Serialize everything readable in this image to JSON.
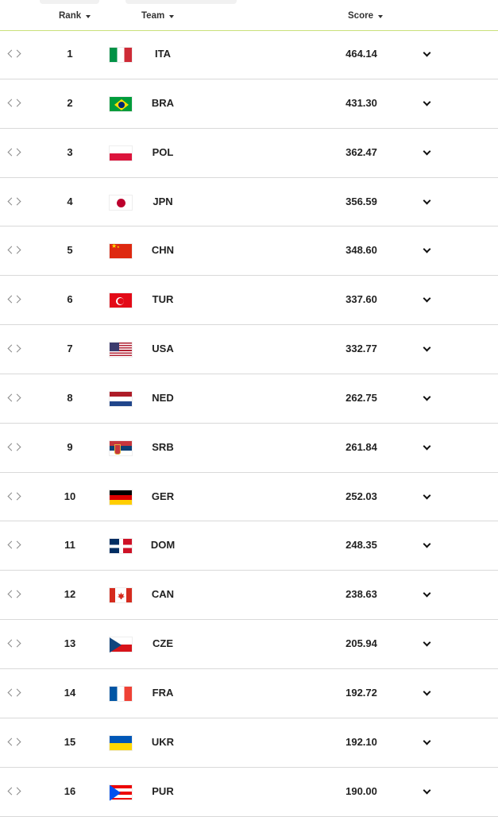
{
  "header": {
    "rank_label": "Rank",
    "team_label": "Team",
    "score_label": "Score"
  },
  "rows": [
    {
      "rank": "1",
      "code": "ITA",
      "score": "464.14",
      "flag": "f-ita"
    },
    {
      "rank": "2",
      "code": "BRA",
      "score": "431.30",
      "flag": "f-bra"
    },
    {
      "rank": "3",
      "code": "POL",
      "score": "362.47",
      "flag": "f-pol"
    },
    {
      "rank": "4",
      "code": "JPN",
      "score": "356.59",
      "flag": "f-jpn"
    },
    {
      "rank": "5",
      "code": "CHN",
      "score": "348.60",
      "flag": "f-chn"
    },
    {
      "rank": "6",
      "code": "TUR",
      "score": "337.60",
      "flag": "f-tur"
    },
    {
      "rank": "7",
      "code": "USA",
      "score": "332.77",
      "flag": "f-usa"
    },
    {
      "rank": "8",
      "code": "NED",
      "score": "262.75",
      "flag": "f-ned"
    },
    {
      "rank": "9",
      "code": "SRB",
      "score": "261.84",
      "flag": "f-srb"
    },
    {
      "rank": "10",
      "code": "GER",
      "score": "252.03",
      "flag": "f-ger"
    },
    {
      "rank": "11",
      "code": "DOM",
      "score": "248.35",
      "flag": "f-dom"
    },
    {
      "rank": "12",
      "code": "CAN",
      "score": "238.63",
      "flag": "f-can"
    },
    {
      "rank": "13",
      "code": "CZE",
      "score": "205.94",
      "flag": "f-cze"
    },
    {
      "rank": "14",
      "code": "FRA",
      "score": "192.72",
      "flag": "f-fra"
    },
    {
      "rank": "15",
      "code": "UKR",
      "score": "192.10",
      "flag": "f-ukr"
    },
    {
      "rank": "16",
      "code": "PUR",
      "score": "190.00",
      "flag": "f-pur"
    }
  ]
}
